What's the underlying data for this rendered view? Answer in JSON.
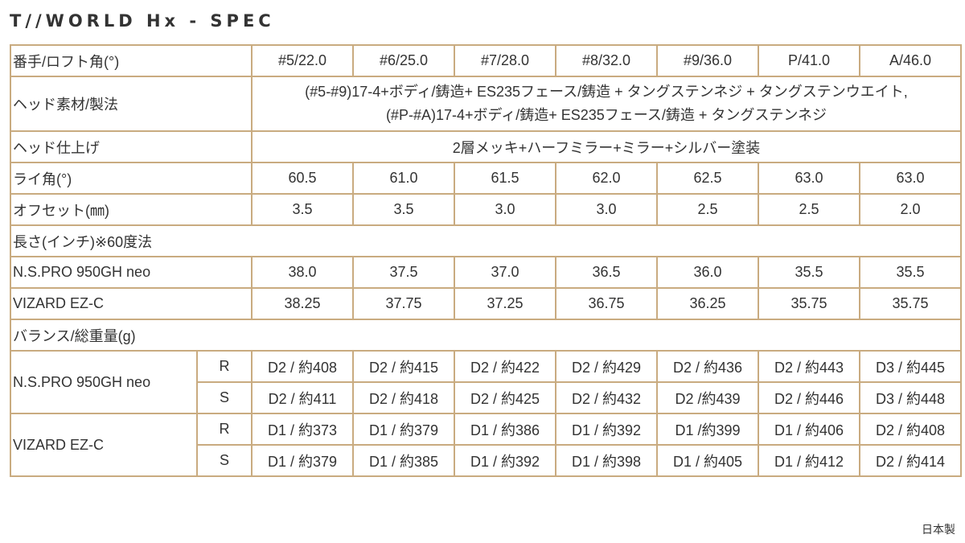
{
  "title": "T//WORLD Hx - SPEC",
  "columns_label": "番手/ロフト角(°)",
  "columns": [
    "#5/22.0",
    "#6/25.0",
    "#7/28.0",
    "#8/32.0",
    "#9/36.0",
    "P/41.0",
    "A/46.0"
  ],
  "head_material": {
    "label": "ヘッド素材/製法",
    "lines": [
      "(#5-#9)17-4+ボディ/鋳造+ ES235フェース/鋳造 + タングステンネジ + タングステンウエイト,",
      "(#P-#A)17-4+ボディ/鋳造+ ES235フェース/鋳造 + タングステンネジ"
    ]
  },
  "head_finish": {
    "label": "ヘッド仕上げ",
    "value": "2層メッキ+ハーフミラー+ミラー+シルバー塗装"
  },
  "lie": {
    "label": "ライ角(°)",
    "values": [
      "60.5",
      "61.0",
      "61.5",
      "62.0",
      "62.5",
      "63.0",
      "63.0"
    ]
  },
  "offset": {
    "label": "オフセット(㎜)",
    "values": [
      "3.5",
      "3.5",
      "3.0",
      "3.0",
      "2.5",
      "2.5",
      "2.0"
    ]
  },
  "length": {
    "label": "長さ(インチ)※60度法",
    "rows": [
      {
        "shaft": "N.S.PRO 950GH neo",
        "values": [
          "38.0",
          "37.5",
          "37.0",
          "36.5",
          "36.0",
          "35.5",
          "35.5"
        ]
      },
      {
        "shaft": "VIZARD EZ-C",
        "values": [
          "38.25",
          "37.75",
          "37.25",
          "36.75",
          "36.25",
          "35.75",
          "35.75"
        ]
      }
    ]
  },
  "balance": {
    "label": "バランス/総重量(g)",
    "shafts": [
      {
        "shaft": "N.S.PRO 950GH neo",
        "flexes": [
          {
            "flex": "R",
            "values": [
              "D2 / 約408",
              "D2 / 約415",
              "D2 / 約422",
              "D2 / 約429",
              "D2 / 約436",
              "D2 / 約443",
              "D3 / 約445"
            ]
          },
          {
            "flex": "S",
            "values": [
              "D2 / 約411",
              "D2 / 約418",
              "D2 / 約425",
              "D2 / 約432",
              "D2 /約439",
              "D2 / 約446",
              "D3 / 約448"
            ]
          }
        ]
      },
      {
        "shaft": "VIZARD EZ-C",
        "flexes": [
          {
            "flex": "R",
            "values": [
              "D1 / 約373",
              "D1 / 約379",
              "D1 / 約386",
              "D1 / 約392",
              "D1 /約399",
              "D1 / 約406",
              "D2 / 約408"
            ]
          },
          {
            "flex": "S",
            "values": [
              "D1 /  約379",
              "D1 / 約385",
              "D1 / 約392",
              "D1 / 約398",
              "D1 /  約405",
              "D1 / 約412",
              "D2 / 約414"
            ]
          }
        ]
      }
    ]
  },
  "footer": "日本製",
  "colors": {
    "border": "#c9ab80",
    "text": "#333333"
  }
}
